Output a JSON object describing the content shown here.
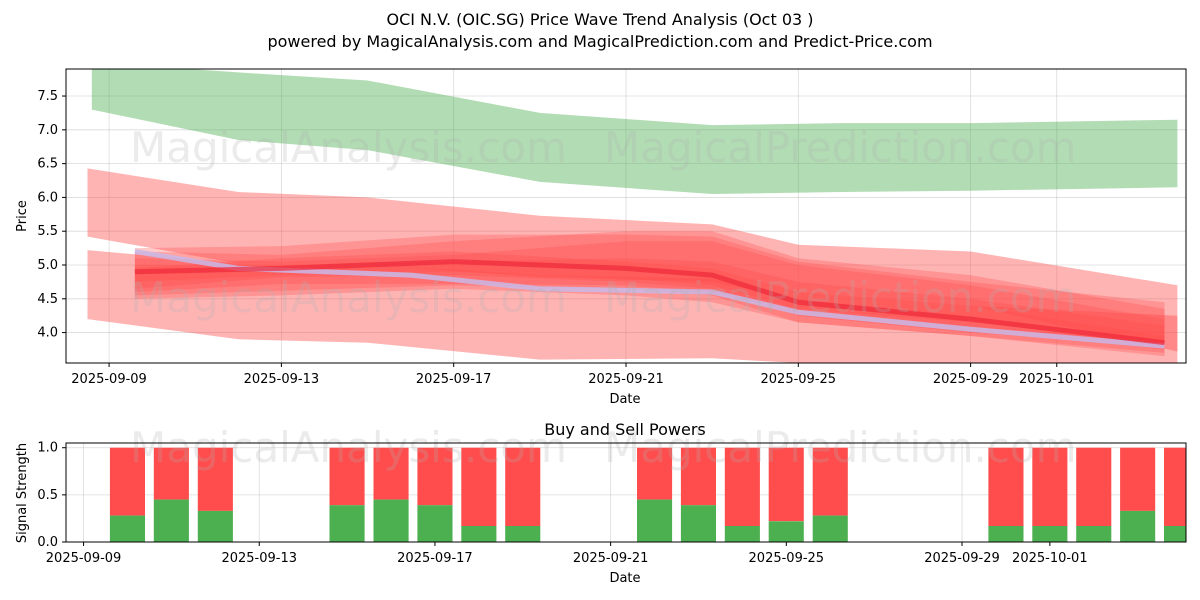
{
  "title_line1": "OCI N.V. (OIC.SG) Price Wave Trend Analysis (Oct 03 )",
  "title_line2": "powered by MagicalAnalysis.com and MagicalPrediction.com and Predict-Price.com",
  "watermarks": [
    "MagicalAnalysis.com",
    "MagicalPrediction.com",
    "MagicalAnalysis.com",
    "MagicalPrediction.com",
    "MagicalAnalysis.com",
    "MagicalPrediction.com"
  ],
  "chart_data": [
    {
      "type": "area",
      "title": "",
      "xlabel": "Date",
      "ylabel": "Price",
      "grid": true,
      "xlim": [
        "2025-09-08",
        "2025-10-04"
      ],
      "ylim": [
        3.55,
        7.9
      ],
      "xticks": [
        "2025-09-09",
        "2025-09-13",
        "2025-09-17",
        "2025-09-21",
        "2025-09-25",
        "2025-09-29",
        "2025-10-01"
      ],
      "yticks": [
        "4.0",
        "4.5",
        "5.0",
        "5.5",
        "6.0",
        "6.5",
        "7.0",
        "7.5"
      ],
      "bands": [
        {
          "name": "upper",
          "color": "#4caf50",
          "opacity": 0.43,
          "x": [
            "2025-09-08.6",
            "2025-09-12",
            "2025-09-15",
            "2025-09-19",
            "2025-09-23",
            "2025-09-26",
            "2025-09-29",
            "2025-10-03.8"
          ],
          "upper": [
            8.0,
            7.85,
            7.73,
            7.25,
            7.07,
            7.1,
            7.1,
            7.15
          ],
          "lower": [
            7.3,
            6.85,
            6.7,
            6.23,
            6.05,
            6.08,
            6.1,
            6.15
          ]
        },
        {
          "name": "red-upper",
          "color": "#ff4d4d",
          "opacity": 0.42,
          "x": [
            "2025-09-08.5",
            "2025-09-12",
            "2025-09-15",
            "2025-09-19",
            "2025-09-23",
            "2025-09-25",
            "2025-09-29",
            "2025-10-03.8"
          ],
          "upper": [
            6.43,
            6.08,
            6.0,
            5.73,
            5.6,
            5.3,
            5.2,
            4.7
          ],
          "lower": [
            5.42,
            5.02,
            5.01,
            4.82,
            4.75,
            4.5,
            4.4,
            3.72
          ]
        },
        {
          "name": "red-lower",
          "color": "#ff4d4d",
          "opacity": 0.42,
          "x": [
            "2025-09-08.5",
            "2025-09-12",
            "2025-09-15",
            "2025-09-19",
            "2025-09-23",
            "2025-09-25",
            "2025-09-29",
            "2025-10-03.8"
          ],
          "upper": [
            5.22,
            5.02,
            5.01,
            4.85,
            4.8,
            4.5,
            4.4,
            4.25
          ],
          "lower": [
            4.2,
            3.9,
            3.85,
            3.6,
            3.62,
            3.55,
            3.55,
            3.55
          ]
        },
        {
          "name": "wave-1",
          "color": "#ff4d4d",
          "opacity": 0.3,
          "x": [
            "2025-09-09.6",
            "2025-09-13",
            "2025-09-17",
            "2025-09-21",
            "2025-09-23",
            "2025-09-25",
            "2025-09-29",
            "2025-10-03.5"
          ],
          "upper": [
            5.25,
            5.28,
            5.45,
            5.45,
            5.42,
            5.05,
            4.75,
            4.45
          ],
          "lower": [
            4.55,
            4.62,
            4.7,
            4.65,
            4.55,
            4.15,
            3.95,
            3.65
          ]
        },
        {
          "name": "wave-2",
          "color": "#ff4d4d",
          "opacity": 0.3,
          "x": [
            "2025-09-09.6",
            "2025-09-13",
            "2025-09-17",
            "2025-09-21",
            "2025-09-23",
            "2025-09-25",
            "2025-09-29",
            "2025-10-03.5"
          ],
          "upper": [
            5.2,
            5.15,
            5.35,
            5.5,
            5.5,
            5.1,
            4.85,
            4.35
          ],
          "lower": [
            4.6,
            4.72,
            4.72,
            4.7,
            4.6,
            4.3,
            4.05,
            3.75
          ]
        },
        {
          "name": "wave-3",
          "color": "#ff4d4d",
          "opacity": 0.3,
          "x": [
            "2025-09-09.6",
            "2025-09-13",
            "2025-09-17",
            "2025-09-21",
            "2025-09-23",
            "2025-09-25",
            "2025-09-29",
            "2025-10-03.5"
          ],
          "upper": [
            5.1,
            5.05,
            5.15,
            5.35,
            5.35,
            5.0,
            4.7,
            4.2
          ],
          "lower": [
            4.65,
            4.82,
            4.85,
            4.75,
            4.65,
            4.25,
            4.0,
            3.8
          ]
        },
        {
          "name": "wave-4",
          "color": "#ff4d4d",
          "opacity": 0.3,
          "x": [
            "2025-09-09.6",
            "2025-09-13",
            "2025-09-17",
            "2025-09-21",
            "2025-09-23",
            "2025-09-25",
            "2025-09-29",
            "2025-10-03.5"
          ],
          "upper": [
            5.0,
            5.0,
            5.05,
            5.1,
            5.05,
            4.75,
            4.5,
            4.1
          ],
          "lower": [
            4.5,
            4.55,
            4.65,
            4.55,
            4.45,
            4.15,
            3.95,
            3.7
          ]
        },
        {
          "name": "wave-5",
          "color": "#ff4d4d",
          "opacity": 0.3,
          "x": [
            "2025-09-09.6",
            "2025-09-13",
            "2025-09-17",
            "2025-09-21",
            "2025-09-23",
            "2025-09-25",
            "2025-09-29",
            "2025-10-03.5"
          ],
          "upper": [
            4.95,
            5.1,
            5.2,
            5.05,
            4.95,
            4.6,
            4.4,
            3.95
          ],
          "lower": [
            4.75,
            4.85,
            4.9,
            4.8,
            4.7,
            4.35,
            4.15,
            3.85
          ]
        }
      ],
      "lines": [
        {
          "name": "lavender-trend",
          "color": "#c9b8e8",
          "opacity": 0.85,
          "x": [
            "2025-09-09.6",
            "2025-09-12",
            "2025-09-16",
            "2025-09-19",
            "2025-09-23",
            "2025-09-25",
            "2025-09-29",
            "2025-10-03.5"
          ],
          "y": [
            5.2,
            4.95,
            4.85,
            4.65,
            4.6,
            4.3,
            4.05,
            3.8
          ]
        },
        {
          "name": "red-trend",
          "color": "#ee2a3a",
          "opacity": 0.7,
          "x": [
            "2025-09-09.6",
            "2025-09-13",
            "2025-09-17",
            "2025-09-21",
            "2025-09-23",
            "2025-09-25",
            "2025-09-29",
            "2025-10-03.5"
          ],
          "y": [
            4.9,
            4.95,
            5.05,
            4.95,
            4.85,
            4.45,
            4.2,
            3.85
          ]
        }
      ]
    },
    {
      "type": "bar",
      "title": "Buy and Sell Powers",
      "xlabel": "Date",
      "ylabel": "Signal Strength",
      "grid": true,
      "xlim": [
        "2025-09-08.6",
        "2025-10-04.1"
      ],
      "ylim": [
        0,
        1.05
      ],
      "xticks": [
        "2025-09-09",
        "2025-09-13",
        "2025-09-17",
        "2025-09-21",
        "2025-09-25",
        "2025-09-29",
        "2025-10-01"
      ],
      "yticks": [
        "0.0",
        "0.5",
        "1.0"
      ],
      "series": [
        {
          "name": "Buy",
          "color": "#4caf50"
        },
        {
          "name": "Sell",
          "color": "#ff4d4d"
        }
      ],
      "categories": [
        "2025-09-10",
        "2025-09-11",
        "2025-09-12",
        "2025-09-15",
        "2025-09-16",
        "2025-09-17",
        "2025-09-18",
        "2025-09-19",
        "2025-09-22",
        "2025-09-23",
        "2025-09-24",
        "2025-09-25",
        "2025-09-26",
        "2025-09-30",
        "2025-10-01",
        "2025-10-02",
        "2025-10-03",
        "2025-10-04"
      ],
      "buy": [
        0.28,
        0.45,
        0.33,
        0.39,
        0.45,
        0.39,
        0.17,
        0.17,
        0.45,
        0.39,
        0.17,
        0.22,
        0.28,
        0.17,
        0.17,
        0.17,
        0.33,
        0.17
      ],
      "total": [
        1,
        1,
        1,
        1,
        1,
        1,
        1,
        1,
        1,
        1,
        1,
        1,
        1,
        1,
        1,
        1,
        1,
        1
      ]
    }
  ]
}
